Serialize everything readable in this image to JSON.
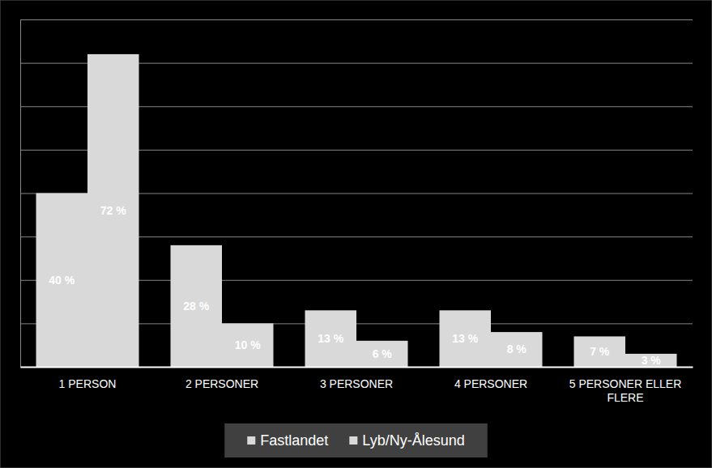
{
  "chart_data": {
    "type": "bar",
    "categories": [
      "1 PERSON",
      "2 PERSONER",
      "3 PERSONER",
      "4 PERSONER",
      "5 PERSONER ELLER FLERE"
    ],
    "series": [
      {
        "name": "Fastlandet",
        "color": "#d9d9d9",
        "values": [
          40,
          28,
          13,
          13,
          7
        ],
        "value_labels": [
          "40 %",
          "28 %",
          "13 %",
          "13 %",
          "7 %"
        ]
      },
      {
        "name": "Lyb/Ny-Ålesund",
        "color": "#d9d9d9",
        "values": [
          72,
          10,
          6,
          8,
          3
        ],
        "value_labels": [
          "72 %",
          "10 %",
          "6 %",
          "8 %",
          "3 %"
        ]
      }
    ],
    "ylim": [
      0,
      80
    ],
    "yticks": [
      0,
      10,
      20,
      30,
      40,
      50,
      60,
      70,
      80
    ],
    "grid": true,
    "tick_labels": "x",
    "data_labels": true,
    "legend": "bottom"
  }
}
